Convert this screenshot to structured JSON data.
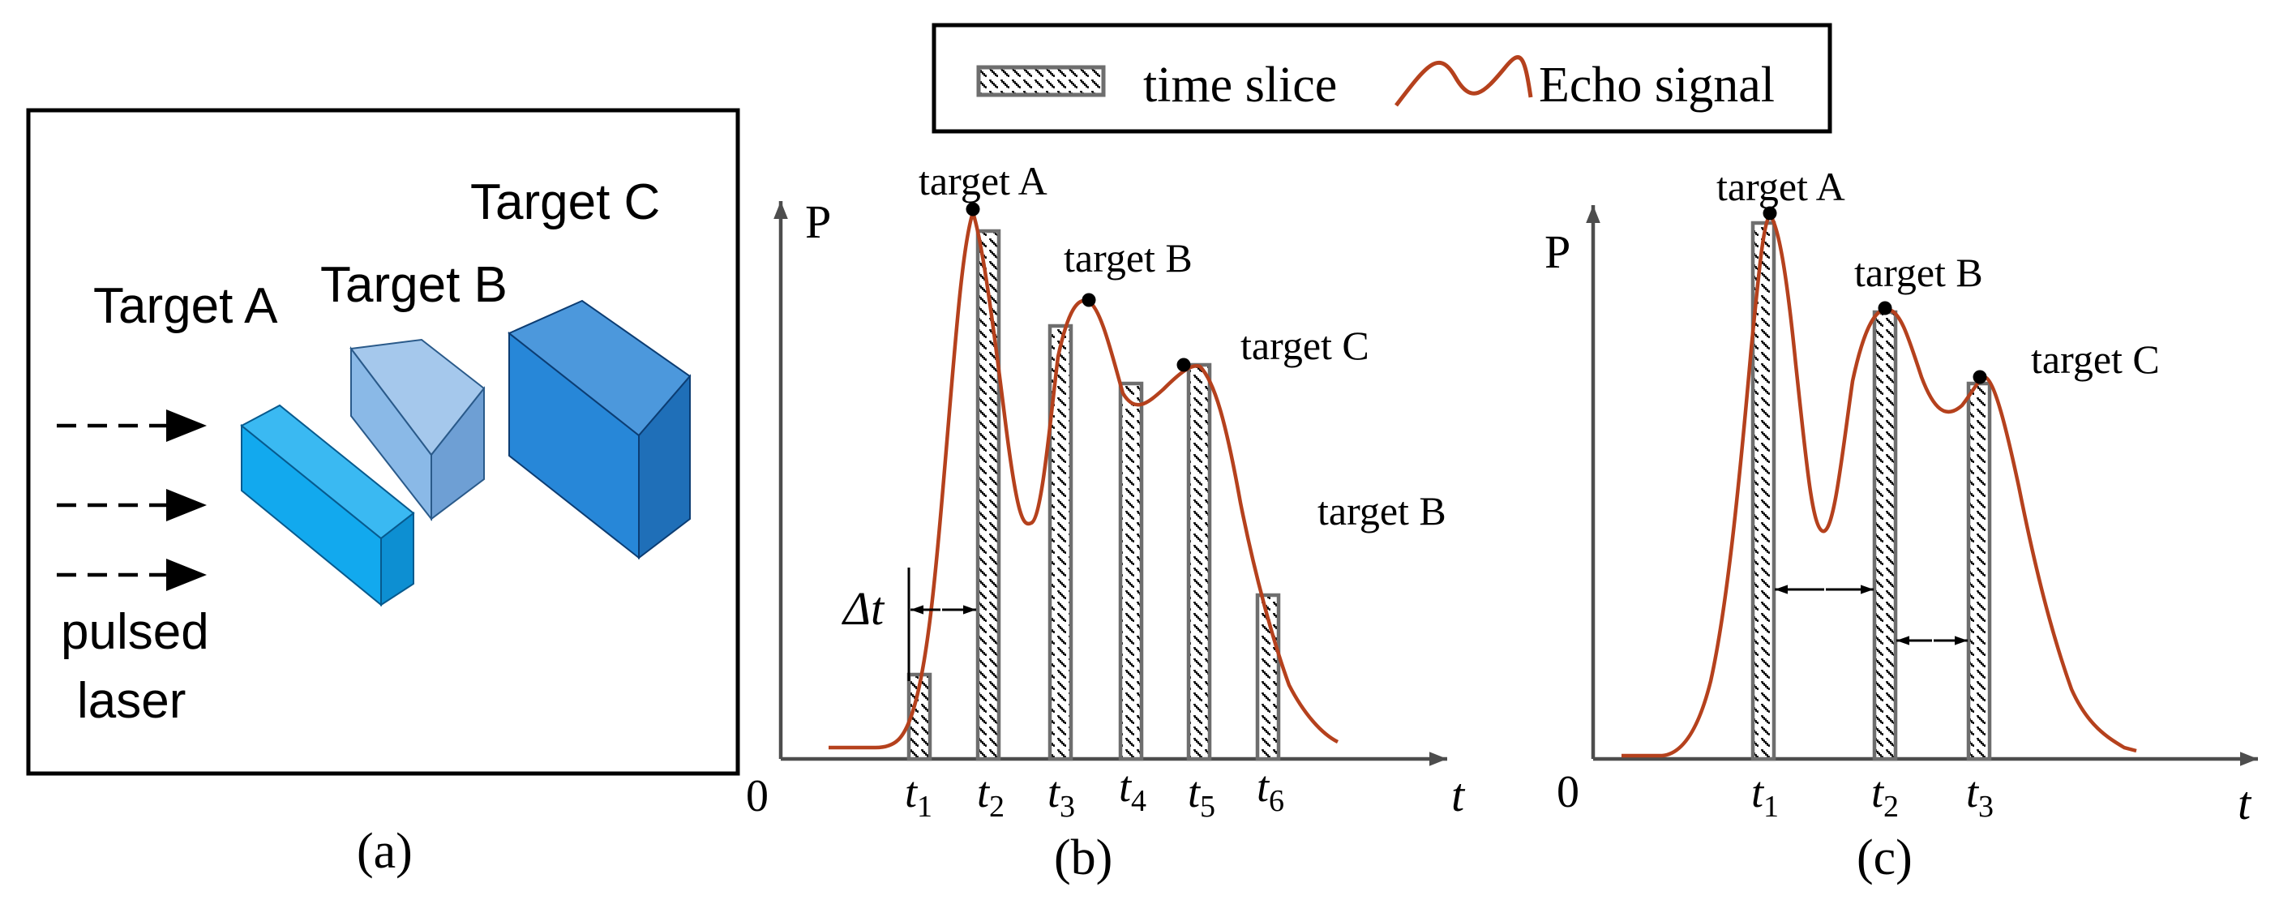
{
  "legend": {
    "slice_label": "time slice",
    "echo_label": "Echo signal"
  },
  "panel_a": {
    "target_a": "Target A",
    "target_b": "Target B",
    "target_c": "Target C",
    "laser_line1": "pulsed",
    "laser_line2": "laser",
    "caption": "(a)"
  },
  "panel_b": {
    "y_axis": "P",
    "x_axis": "t",
    "origin": "0",
    "peak_a": "target A",
    "peak_b": "target B",
    "peak_c": "target C",
    "side_label": "target B",
    "delta": "Δt",
    "ticks": [
      {
        "base": "t",
        "sub": "1"
      },
      {
        "base": "t",
        "sub": "2"
      },
      {
        "base": "t",
        "sub": "3"
      },
      {
        "base": "t",
        "sub": "4"
      },
      {
        "base": "t",
        "sub": "5"
      },
      {
        "base": "t",
        "sub": "6"
      }
    ],
    "caption": "(b)"
  },
  "panel_c": {
    "y_axis": "P",
    "x_axis": "t",
    "origin": "0",
    "peak_a": "target A",
    "peak_b": "target B",
    "peak_c": "target C",
    "ticks": [
      {
        "base": "t",
        "sub": "1"
      },
      {
        "base": "t",
        "sub": "2"
      },
      {
        "base": "t",
        "sub": "3"
      }
    ],
    "caption": "(c)"
  },
  "colors": {
    "echo": "#b5411d",
    "slice_outline": "#6e6e6e",
    "target_a_front": "#12a9ee",
    "target_b_front": "#7aaee2",
    "target_c_front": "#2787d8"
  }
}
